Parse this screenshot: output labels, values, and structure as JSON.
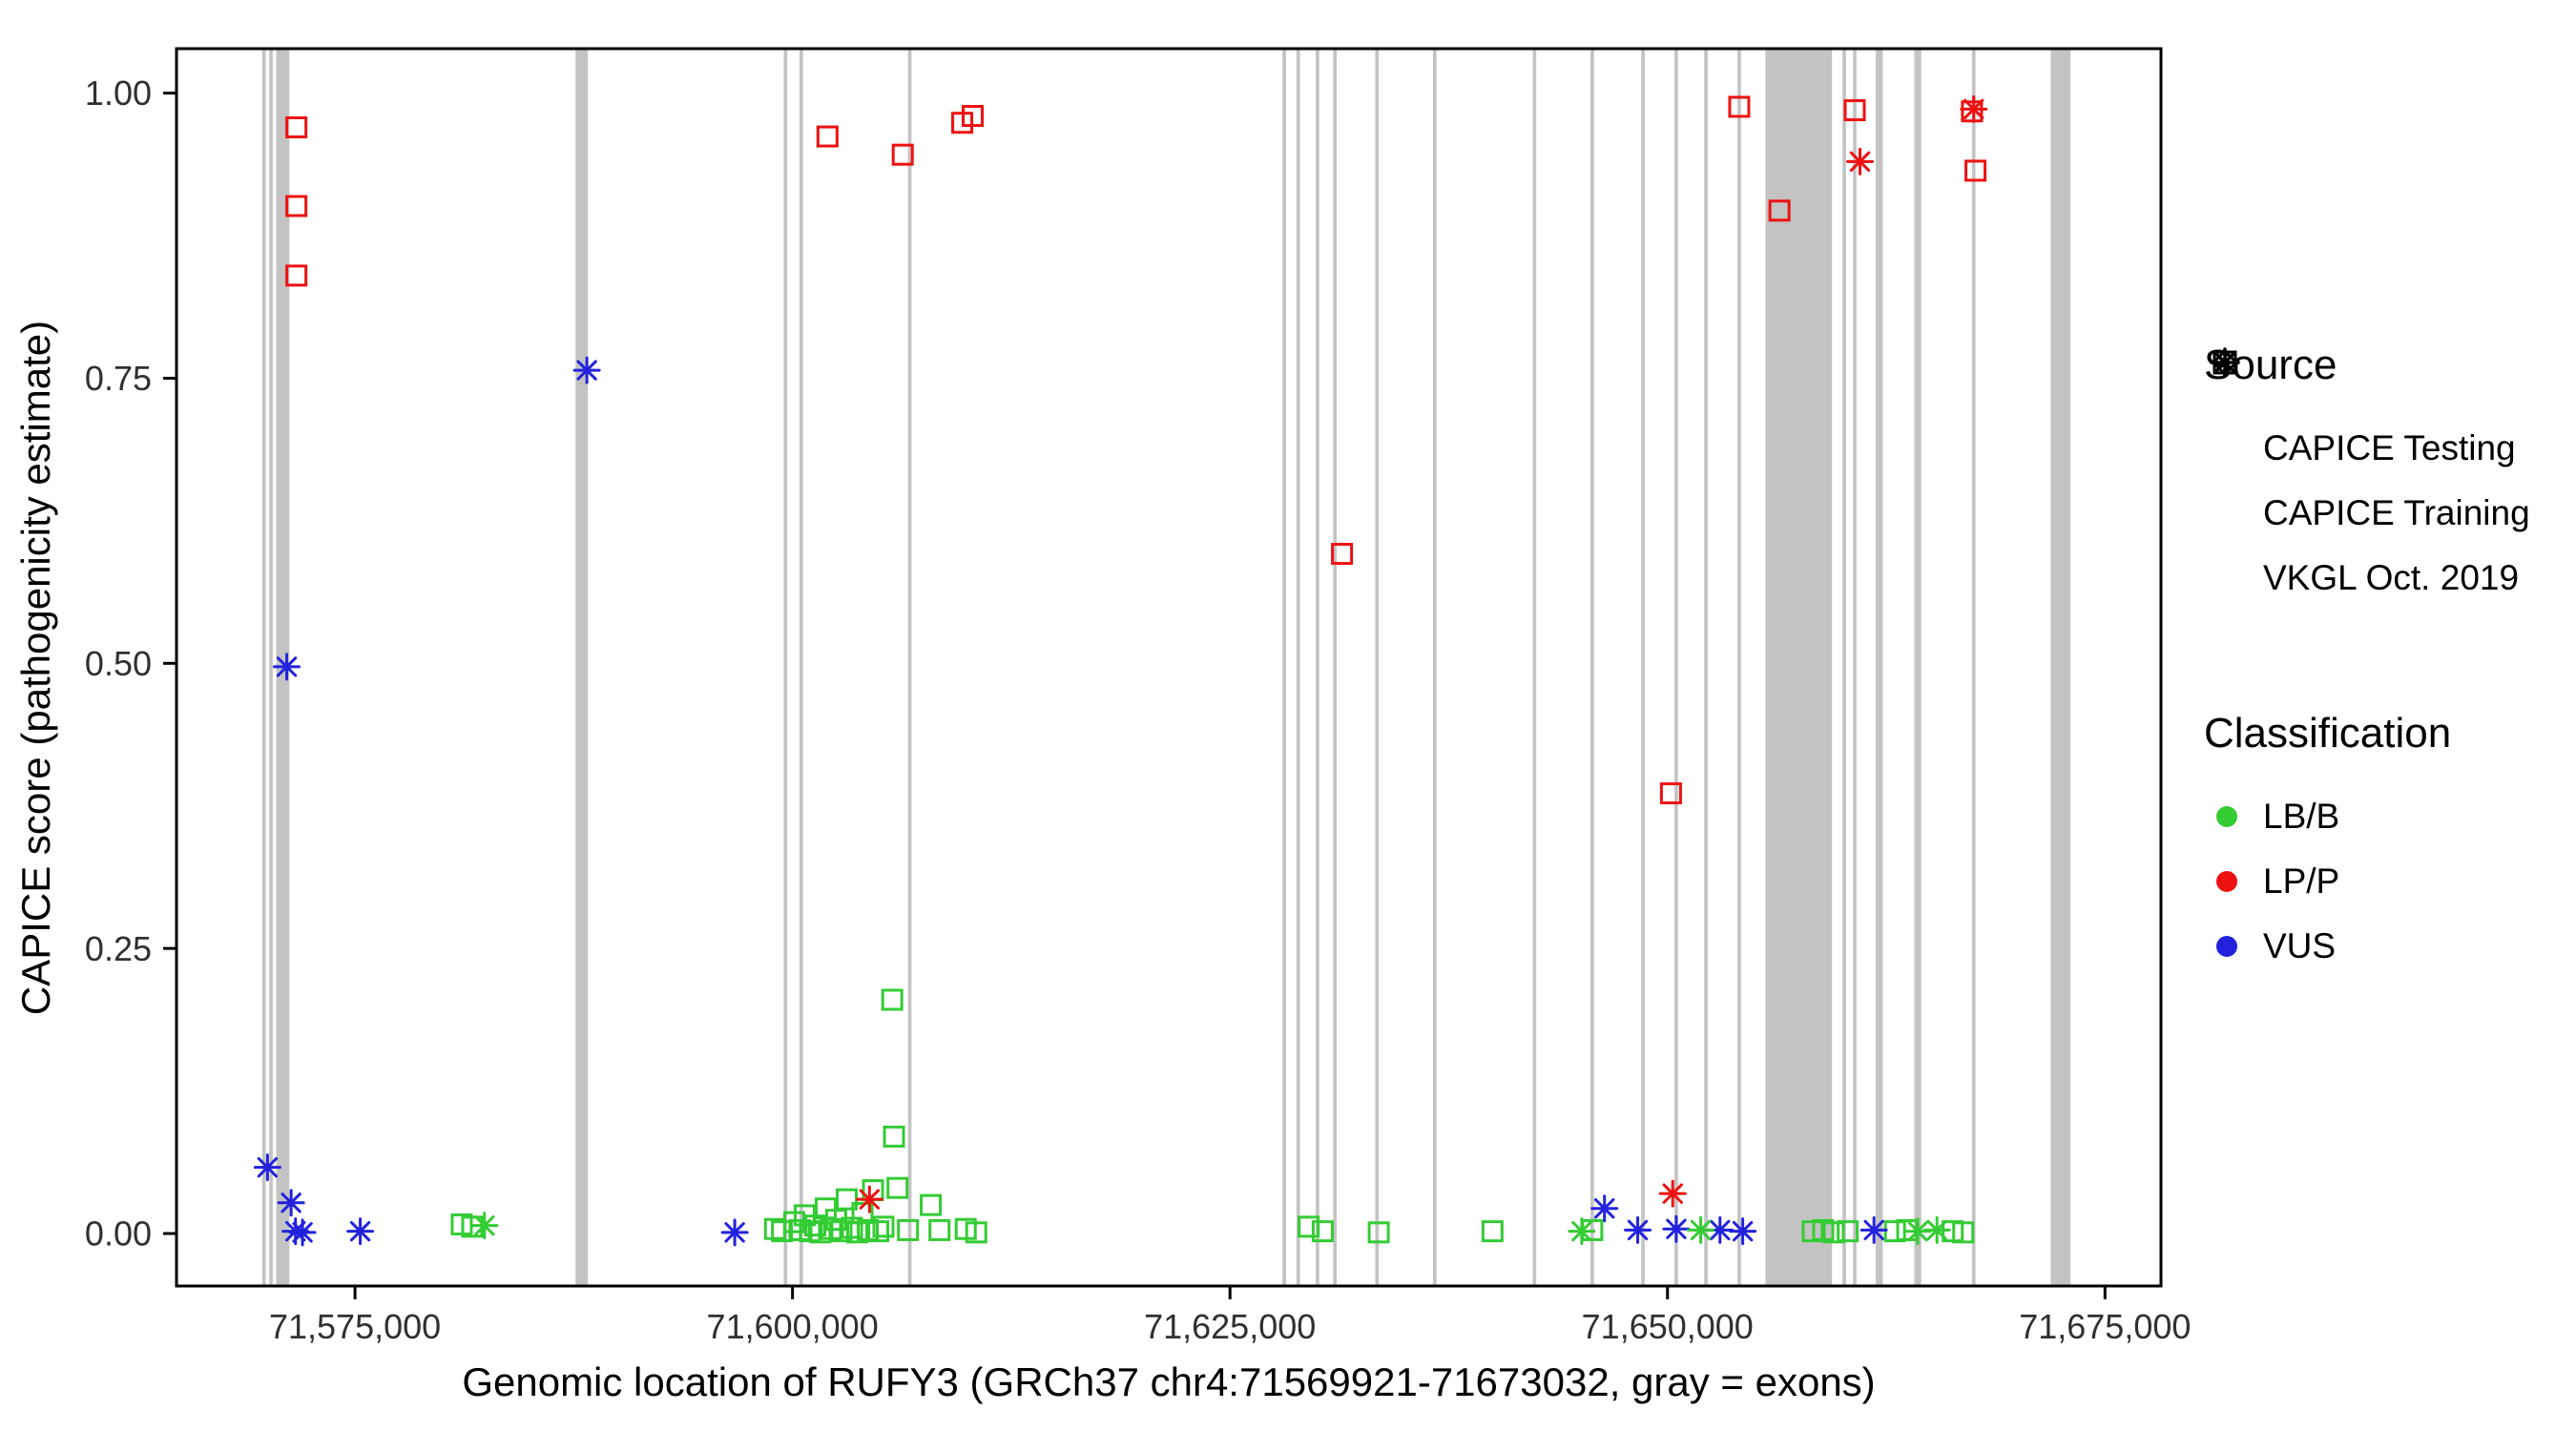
{
  "figure": {
    "y_title": "CAPICE score (pathogenicity estimate)",
    "x_title": "Genomic location of RUFY3 (GRCh37 chr4:71569921-71673032, gray = exons)"
  },
  "legend": {
    "source": {
      "title": "Source",
      "items": [
        {
          "label": "CAPICE Testing",
          "symbol": "diamond",
          "icon": "diamond-icon"
        },
        {
          "label": "CAPICE Training",
          "symbol": "square",
          "icon": "square-icon"
        },
        {
          "label": "VKGL Oct. 2019",
          "symbol": "asterisk",
          "icon": "asterisk-icon"
        }
      ]
    },
    "classification": {
      "title": "Classification",
      "items": [
        {
          "label": "LB/B",
          "color": "#33CC33"
        },
        {
          "label": "LP/P",
          "color": "#EE1111"
        },
        {
          "label": "VUS",
          "color": "#2222DD"
        }
      ]
    }
  },
  "chart_data": {
    "type": "scatter",
    "title": "",
    "xlabel": "Genomic location of RUFY3 (GRCh37 chr4:71569921-71673032, gray = exons)",
    "ylabel": "CAPICE score (pathogenicity estimate)",
    "xlim": [
      71564800,
      71678200
    ],
    "ylim": [
      -0.046,
      1.039
    ],
    "grid": false,
    "legend_position": "right",
    "panel_border_color": "#000000",
    "exon_color": "#C3C3C3",
    "x_ticks": [
      {
        "value": 71575000,
        "label": "71,575,000"
      },
      {
        "value": 71600000,
        "label": "71,600,000"
      },
      {
        "value": 71625000,
        "label": "71,625,000"
      },
      {
        "value": 71650000,
        "label": "71,650,000"
      },
      {
        "value": 71675000,
        "label": "71,675,000"
      }
    ],
    "y_ticks": [
      {
        "value": 0.0,
        "label": "0.00"
      },
      {
        "value": 0.25,
        "label": "0.25"
      },
      {
        "value": 0.5,
        "label": "0.50"
      },
      {
        "value": 0.75,
        "label": "0.75"
      },
      {
        "value": 1.0,
        "label": "1.00"
      }
    ],
    "exons": [
      [
        71569700,
        71569900
      ],
      [
        71570100,
        71570300
      ],
      [
        71570500,
        71571250
      ],
      [
        71587600,
        71588300
      ],
      [
        71599500,
        71599700
      ],
      [
        71600400,
        71600600
      ],
      [
        71606600,
        71606800
      ],
      [
        71628000,
        71628200
      ],
      [
        71628800,
        71629000
      ],
      [
        71629900,
        71630100
      ],
      [
        71630900,
        71631100
      ],
      [
        71633300,
        71633500
      ],
      [
        71636600,
        71636800
      ],
      [
        71642300,
        71642500
      ],
      [
        71645600,
        71645800
      ],
      [
        71648500,
        71648700
      ],
      [
        71650400,
        71650600
      ],
      [
        71652100,
        71652300
      ],
      [
        71654000,
        71654200
      ],
      [
        71655600,
        71659400
      ],
      [
        71660000,
        71660200
      ],
      [
        71660600,
        71660800
      ],
      [
        71661900,
        71662300
      ],
      [
        71664100,
        71664500
      ],
      [
        71667400,
        71667600
      ],
      [
        71671900,
        71673032
      ]
    ],
    "series": [
      {
        "name": "CAPICE Training / LP/P",
        "source": "CAPICE Training",
        "classification": "LP/P",
        "marker": "square",
        "color": "#EE1111",
        "points": [
          [
            71571650,
            0.97
          ],
          [
            71571650,
            0.901
          ],
          [
            71571650,
            0.84
          ],
          [
            71602000,
            0.962
          ],
          [
            71606300,
            0.946
          ],
          [
            71609700,
            0.974
          ],
          [
            71610300,
            0.98
          ],
          [
            71631400,
            0.596
          ],
          [
            71650200,
            0.386
          ],
          [
            71654100,
            0.988
          ],
          [
            71656400,
            0.897
          ],
          [
            71660700,
            0.985
          ],
          [
            71667400,
            0.984
          ],
          [
            71667600,
            0.932
          ]
        ]
      },
      {
        "name": "CAPICE Training / LB/B",
        "source": "CAPICE Training",
        "classification": "LB/B",
        "marker": "square",
        "color": "#33CC33",
        "points": [
          [
            71581100,
            0.008
          ],
          [
            71581700,
            0.006
          ],
          [
            71599000,
            0.004
          ],
          [
            71599400,
            0.002
          ],
          [
            71600100,
            0.01
          ],
          [
            71600400,
            0.003
          ],
          [
            71600700,
            0.016
          ],
          [
            71601000,
            0.002
          ],
          [
            71601300,
            0.007
          ],
          [
            71601600,
            0.001
          ],
          [
            71601900,
            0.022
          ],
          [
            71602200,
            0.004
          ],
          [
            71602500,
            0.012
          ],
          [
            71602800,
            0.002
          ],
          [
            71603100,
            0.03
          ],
          [
            71603400,
            0.005
          ],
          [
            71603700,
            0.001
          ],
          [
            71604000,
            0.018
          ],
          [
            71604300,
            0.003
          ],
          [
            71604600,
            0.038
          ],
          [
            71604900,
            0.002
          ],
          [
            71605200,
            0.006
          ],
          [
            71605700,
            0.205
          ],
          [
            71605800,
            0.085
          ],
          [
            71606000,
            0.04
          ],
          [
            71606600,
            0.003
          ],
          [
            71607900,
            0.025
          ],
          [
            71608400,
            0.003
          ],
          [
            71609900,
            0.004
          ],
          [
            71610500,
            0.001
          ],
          [
            71629500,
            0.006
          ],
          [
            71630300,
            0.002
          ],
          [
            71633500,
            0.001
          ],
          [
            71640000,
            0.002
          ],
          [
            71645700,
            0.003
          ],
          [
            71658300,
            0.002
          ],
          [
            71658900,
            0.003
          ],
          [
            71659500,
            0.001
          ],
          [
            71660300,
            0.002
          ],
          [
            71663000,
            0.002
          ],
          [
            71663700,
            0.003
          ],
          [
            71666300,
            0.002
          ],
          [
            71666900,
            0.001
          ]
        ]
      },
      {
        "name": "VKGL Oct. 2019 / VUS",
        "source": "VKGL Oct. 2019",
        "classification": "VUS",
        "marker": "asterisk",
        "color": "#2222DD",
        "points": [
          [
            71570000,
            0.058
          ],
          [
            71571100,
            0.497
          ],
          [
            71571350,
            0.027
          ],
          [
            71571600,
            0.002
          ],
          [
            71572000,
            0.001
          ],
          [
            71575300,
            0.002
          ],
          [
            71588250,
            0.757
          ],
          [
            71596700,
            0.001
          ],
          [
            71646400,
            0.022
          ],
          [
            71648300,
            0.003
          ],
          [
            71650500,
            0.004
          ],
          [
            71653000,
            0.003
          ],
          [
            71654300,
            0.002
          ],
          [
            71661800,
            0.003
          ]
        ]
      },
      {
        "name": "VKGL Oct. 2019 / LP/P",
        "source": "VKGL Oct. 2019",
        "classification": "LP/P",
        "marker": "asterisk",
        "color": "#EE1111",
        "points": [
          [
            71604400,
            0.03
          ],
          [
            71650300,
            0.035
          ],
          [
            71661000,
            0.94
          ],
          [
            71667500,
            0.986
          ]
        ]
      },
      {
        "name": "VKGL Oct. 2019 / LB/B",
        "source": "VKGL Oct. 2019",
        "classification": "LB/B",
        "marker": "asterisk",
        "color": "#33CC33",
        "points": [
          [
            71582400,
            0.007
          ],
          [
            71645100,
            0.002
          ],
          [
            71651900,
            0.003
          ],
          [
            71664300,
            0.002
          ],
          [
            71665400,
            0.003
          ]
        ]
      }
    ]
  }
}
